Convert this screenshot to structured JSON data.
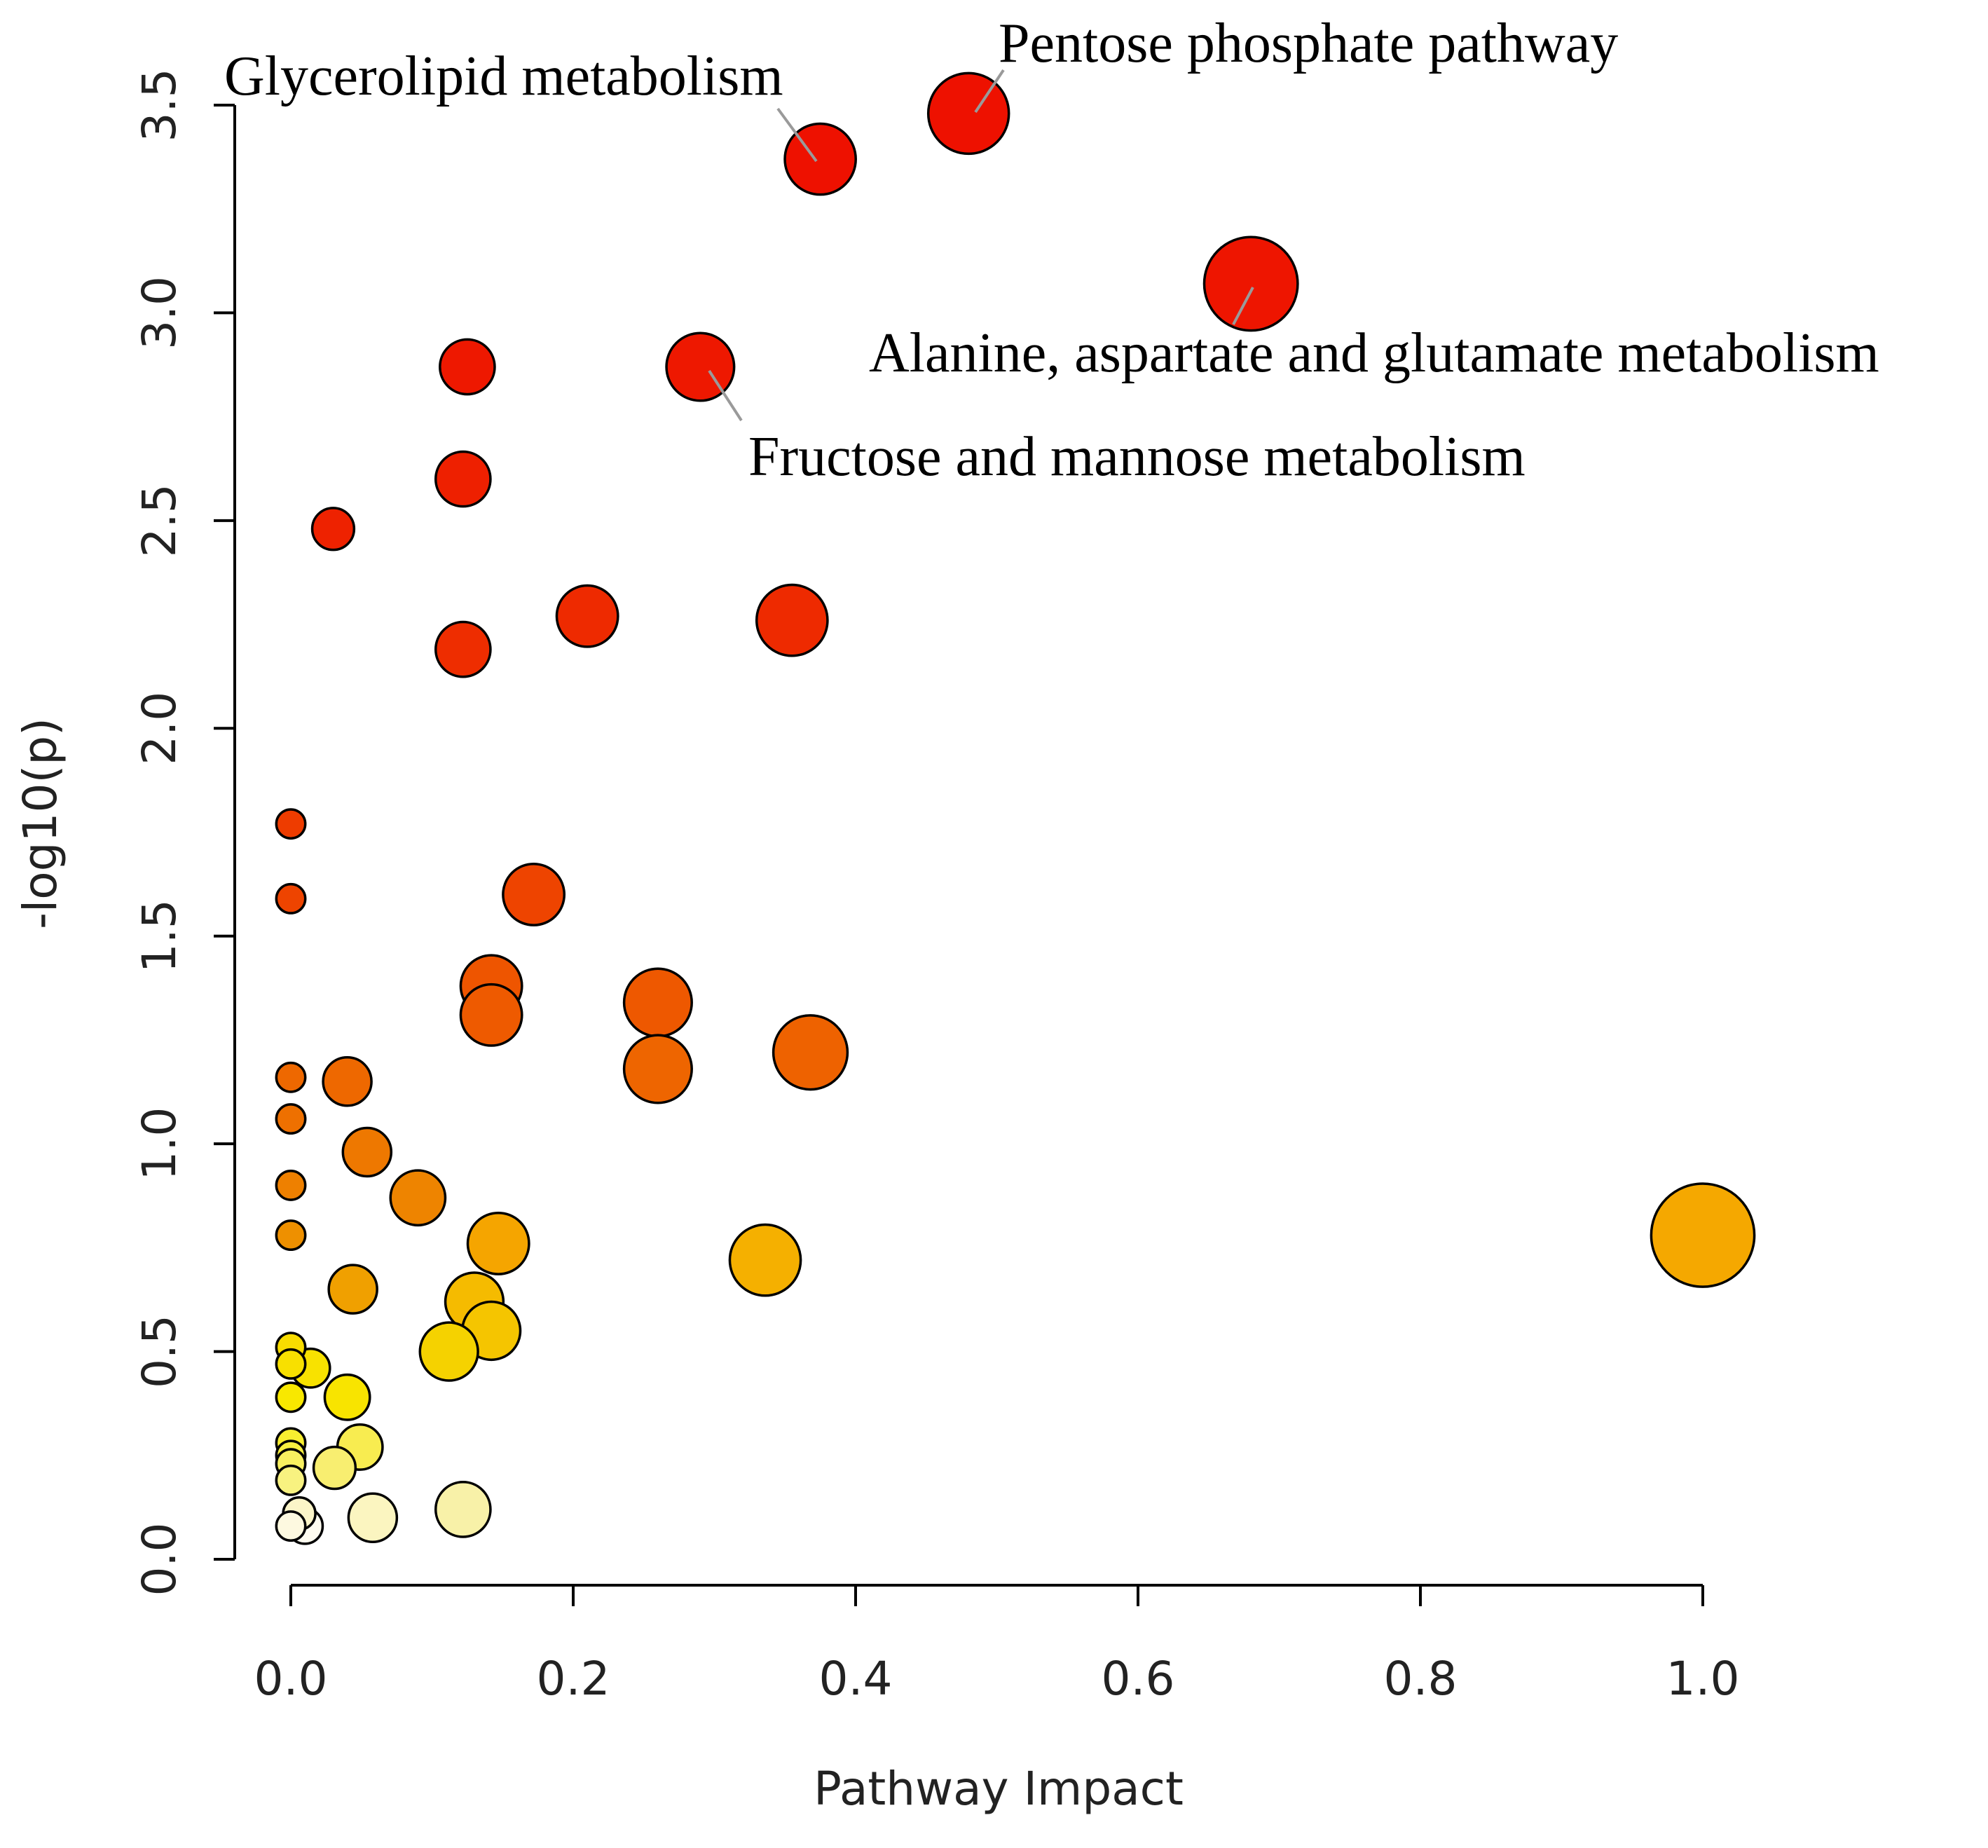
{
  "chart_data": {
    "type": "scatter",
    "xlabel": "Pathway Impact",
    "ylabel": "-log10(p)",
    "xlim": [
      0,
      1.0
    ],
    "ylim": [
      0,
      3.5
    ],
    "xticks": [
      0.0,
      0.2,
      0.4,
      0.6,
      0.8,
      1.0
    ],
    "xtick_labels": [
      "0.0",
      "0.2",
      "0.4",
      "0.6",
      "0.8",
      "1.0"
    ],
    "yticks": [
      0.0,
      0.5,
      1.0,
      1.5,
      2.0,
      2.5,
      3.0,
      3.5
    ],
    "ytick_labels": [
      "0.0",
      "0.5",
      "1.0",
      "1.5",
      "2.0",
      "2.5",
      "3.0",
      "3.5"
    ],
    "points": [
      {
        "x": 0.48,
        "y": 3.48,
        "size": 1.25,
        "color": "#ee1100"
      },
      {
        "x": 0.375,
        "y": 3.37,
        "size": 1.1,
        "color": "#ee1100"
      },
      {
        "x": 0.68,
        "y": 3.07,
        "size": 1.45,
        "color": "#ee1500"
      },
      {
        "x": 0.125,
        "y": 2.87,
        "size": 0.85,
        "color": "#ee1800"
      },
      {
        "x": 0.29,
        "y": 2.87,
        "size": 1.05,
        "color": "#ee1800"
      },
      {
        "x": 0.122,
        "y": 2.6,
        "size": 0.85,
        "color": "#ee2000"
      },
      {
        "x": 0.03,
        "y": 2.48,
        "size": 0.65,
        "color": "#ee2200"
      },
      {
        "x": 0.21,
        "y": 2.27,
        "size": 0.95,
        "color": "#ee2a00"
      },
      {
        "x": 0.355,
        "y": 2.26,
        "size": 1.1,
        "color": "#ee2a00"
      },
      {
        "x": 0.122,
        "y": 2.19,
        "size": 0.85,
        "color": "#ee2d00"
      },
      {
        "x": 0.0,
        "y": 1.77,
        "size": 0.45,
        "color": "#ee3c00"
      },
      {
        "x": 0.0,
        "y": 1.59,
        "size": 0.45,
        "color": "#ee4400"
      },
      {
        "x": 0.172,
        "y": 1.6,
        "size": 0.95,
        "color": "#ee4400"
      },
      {
        "x": 0.142,
        "y": 1.38,
        "size": 0.95,
        "color": "#ee5500"
      },
      {
        "x": 0.26,
        "y": 1.34,
        "size": 1.05,
        "color": "#ee5800"
      },
      {
        "x": 0.142,
        "y": 1.31,
        "size": 0.95,
        "color": "#ee5a00"
      },
      {
        "x": 0.368,
        "y": 1.22,
        "size": 1.15,
        "color": "#ee6200"
      },
      {
        "x": 0.26,
        "y": 1.18,
        "size": 1.05,
        "color": "#ee6500"
      },
      {
        "x": 0.0,
        "y": 1.16,
        "size": 0.45,
        "color": "#ee6800"
      },
      {
        "x": 0.04,
        "y": 1.15,
        "size": 0.75,
        "color": "#ee6800"
      },
      {
        "x": 0.0,
        "y": 1.06,
        "size": 0.45,
        "color": "#ee7000"
      },
      {
        "x": 0.054,
        "y": 0.98,
        "size": 0.75,
        "color": "#ee7800"
      },
      {
        "x": 0.0,
        "y": 0.9,
        "size": 0.45,
        "color": "#ee8000"
      },
      {
        "x": 0.09,
        "y": 0.87,
        "size": 0.85,
        "color": "#ee8400"
      },
      {
        "x": 0.0,
        "y": 0.78,
        "size": 0.45,
        "color": "#ee9000"
      },
      {
        "x": 1.0,
        "y": 0.78,
        "size": 1.6,
        "color": "#f5a800"
      },
      {
        "x": 0.147,
        "y": 0.76,
        "size": 0.95,
        "color": "#f5a500"
      },
      {
        "x": 0.336,
        "y": 0.72,
        "size": 1.1,
        "color": "#f5b000"
      },
      {
        "x": 0.044,
        "y": 0.65,
        "size": 0.75,
        "color": "#f0a000"
      },
      {
        "x": 0.13,
        "y": 0.62,
        "size": 0.9,
        "color": "#f5bb00"
      },
      {
        "x": 0.142,
        "y": 0.55,
        "size": 0.9,
        "color": "#f5c500"
      },
      {
        "x": 0.0,
        "y": 0.51,
        "size": 0.45,
        "color": "#f8dc00"
      },
      {
        "x": 0.112,
        "y": 0.5,
        "size": 0.9,
        "color": "#f5d200"
      },
      {
        "x": 0.0,
        "y": 0.47,
        "size": 0.45,
        "color": "#f8e000"
      },
      {
        "x": 0.014,
        "y": 0.46,
        "size": 0.6,
        "color": "#f8e200"
      },
      {
        "x": 0.0,
        "y": 0.39,
        "size": 0.45,
        "color": "#f8e800"
      },
      {
        "x": 0.04,
        "y": 0.39,
        "size": 0.7,
        "color": "#f8e400"
      },
      {
        "x": 0.0,
        "y": 0.28,
        "size": 0.45,
        "color": "#f8ee30"
      },
      {
        "x": 0.0,
        "y": 0.25,
        "size": 0.45,
        "color": "#f8ef40"
      },
      {
        "x": 0.049,
        "y": 0.27,
        "size": 0.7,
        "color": "#f8ec50"
      },
      {
        "x": 0.0,
        "y": 0.23,
        "size": 0.45,
        "color": "#f8f060"
      },
      {
        "x": 0.031,
        "y": 0.22,
        "size": 0.65,
        "color": "#f8ee70"
      },
      {
        "x": 0.0,
        "y": 0.19,
        "size": 0.45,
        "color": "#f8f280"
      },
      {
        "x": 0.122,
        "y": 0.12,
        "size": 0.85,
        "color": "#f8f1a8"
      },
      {
        "x": 0.006,
        "y": 0.11,
        "size": 0.5,
        "color": "#fbf5c8"
      },
      {
        "x": 0.058,
        "y": 0.1,
        "size": 0.75,
        "color": "#fbf5c0"
      },
      {
        "x": 0.0,
        "y": 0.08,
        "size": 0.45,
        "color": "#fdf9e0"
      },
      {
        "x": 0.01,
        "y": 0.08,
        "size": 0.55,
        "color": "#fefcf0"
      }
    ],
    "annotations": [
      {
        "label": "Pentose phosphate pathway",
        "x": 0.48,
        "y": 3.48
      },
      {
        "label": "Glycerolipid metabolism",
        "x": 0.375,
        "y": 3.37
      },
      {
        "label": "Alanine, aspartate and glutamate metabolism",
        "x": 0.68,
        "y": 3.07
      },
      {
        "label": "Fructose and mannose metabolism",
        "x": 0.29,
        "y": 2.87
      }
    ]
  }
}
